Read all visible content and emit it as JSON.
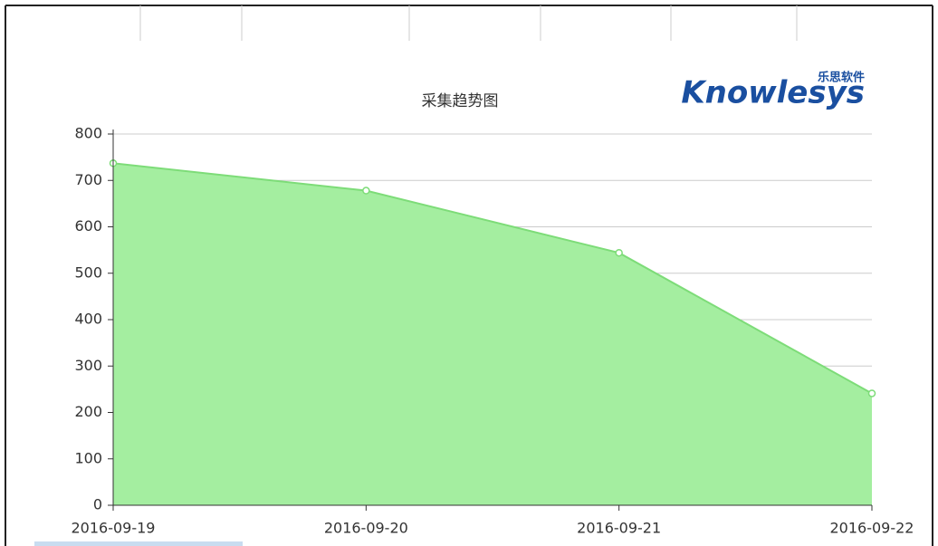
{
  "chart_data": {
    "type": "area",
    "title": "采集趋势图",
    "logo_text": "Knowlesys",
    "logo_subtext": "乐思软件",
    "categories": [
      "2016-09-19",
      "2016-09-20",
      "2016-09-21",
      "2016-09-22"
    ],
    "values": [
      737,
      678,
      544,
      241
    ],
    "color": "#7ddc78",
    "fill": "#a4eea0",
    "ylim": [
      0,
      800
    ],
    "yticks": [
      0,
      100,
      200,
      300,
      400,
      500,
      600,
      700,
      800
    ],
    "grid": true
  }
}
